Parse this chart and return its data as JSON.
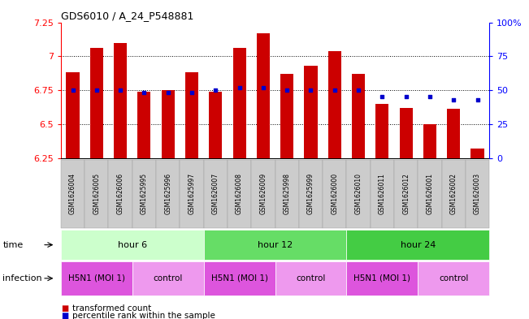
{
  "title": "GDS6010 / A_24_P548881",
  "samples": [
    "GSM1626004",
    "GSM1626005",
    "GSM1626006",
    "GSM1625995",
    "GSM1625996",
    "GSM1625997",
    "GSM1626007",
    "GSM1626008",
    "GSM1626009",
    "GSM1625998",
    "GSM1625999",
    "GSM1626000",
    "GSM1626010",
    "GSM1626011",
    "GSM1626012",
    "GSM1626001",
    "GSM1626002",
    "GSM1626003"
  ],
  "transformed_counts": [
    6.88,
    7.06,
    7.1,
    6.74,
    6.75,
    6.88,
    6.74,
    7.06,
    7.17,
    6.87,
    6.93,
    7.04,
    6.87,
    6.65,
    6.62,
    6.5,
    6.61,
    6.32
  ],
  "percentile_ranks_pct": [
    50,
    50,
    50,
    48,
    48,
    48,
    50,
    52,
    52,
    50,
    50,
    50,
    50,
    45,
    45,
    45,
    43,
    43
  ],
  "bar_color": "#cc0000",
  "dot_color": "#0000cc",
  "ylim": [
    6.25,
    7.25
  ],
  "yticks": [
    6.25,
    6.5,
    6.75,
    7.0,
    7.25
  ],
  "ytick_labels": [
    "6.25",
    "6.5",
    "6.75",
    "7",
    "7.25"
  ],
  "right_yticks_pct": [
    0,
    25,
    50,
    75,
    100
  ],
  "right_ytick_labels": [
    "0",
    "25",
    "50",
    "75",
    "100%"
  ],
  "hlines": [
    6.5,
    6.75,
    7.0
  ],
  "time_groups": [
    {
      "label": "hour 6",
      "start": 0,
      "end": 6,
      "color": "#ccffcc"
    },
    {
      "label": "hour 12",
      "start": 6,
      "end": 12,
      "color": "#66dd66"
    },
    {
      "label": "hour 24",
      "start": 12,
      "end": 18,
      "color": "#44cc44"
    }
  ],
  "infection_groups": [
    {
      "label": "H5N1 (MOI 1)",
      "start": 0,
      "end": 3,
      "color": "#dd55dd"
    },
    {
      "label": "control",
      "start": 3,
      "end": 6,
      "color": "#ee99ee"
    },
    {
      "label": "H5N1 (MOI 1)",
      "start": 6,
      "end": 9,
      "color": "#dd55dd"
    },
    {
      "label": "control",
      "start": 9,
      "end": 12,
      "color": "#ee99ee"
    },
    {
      "label": "H5N1 (MOI 1)",
      "start": 12,
      "end": 15,
      "color": "#dd55dd"
    },
    {
      "label": "control",
      "start": 15,
      "end": 18,
      "color": "#ee99ee"
    }
  ],
  "time_label": "time",
  "infection_label": "infection",
  "legend_bar_label": "transformed count",
  "legend_dot_label": "percentile rank within the sample",
  "bar_width": 0.55,
  "sample_bg_color": "#cccccc",
  "sample_border_color": "#999999"
}
